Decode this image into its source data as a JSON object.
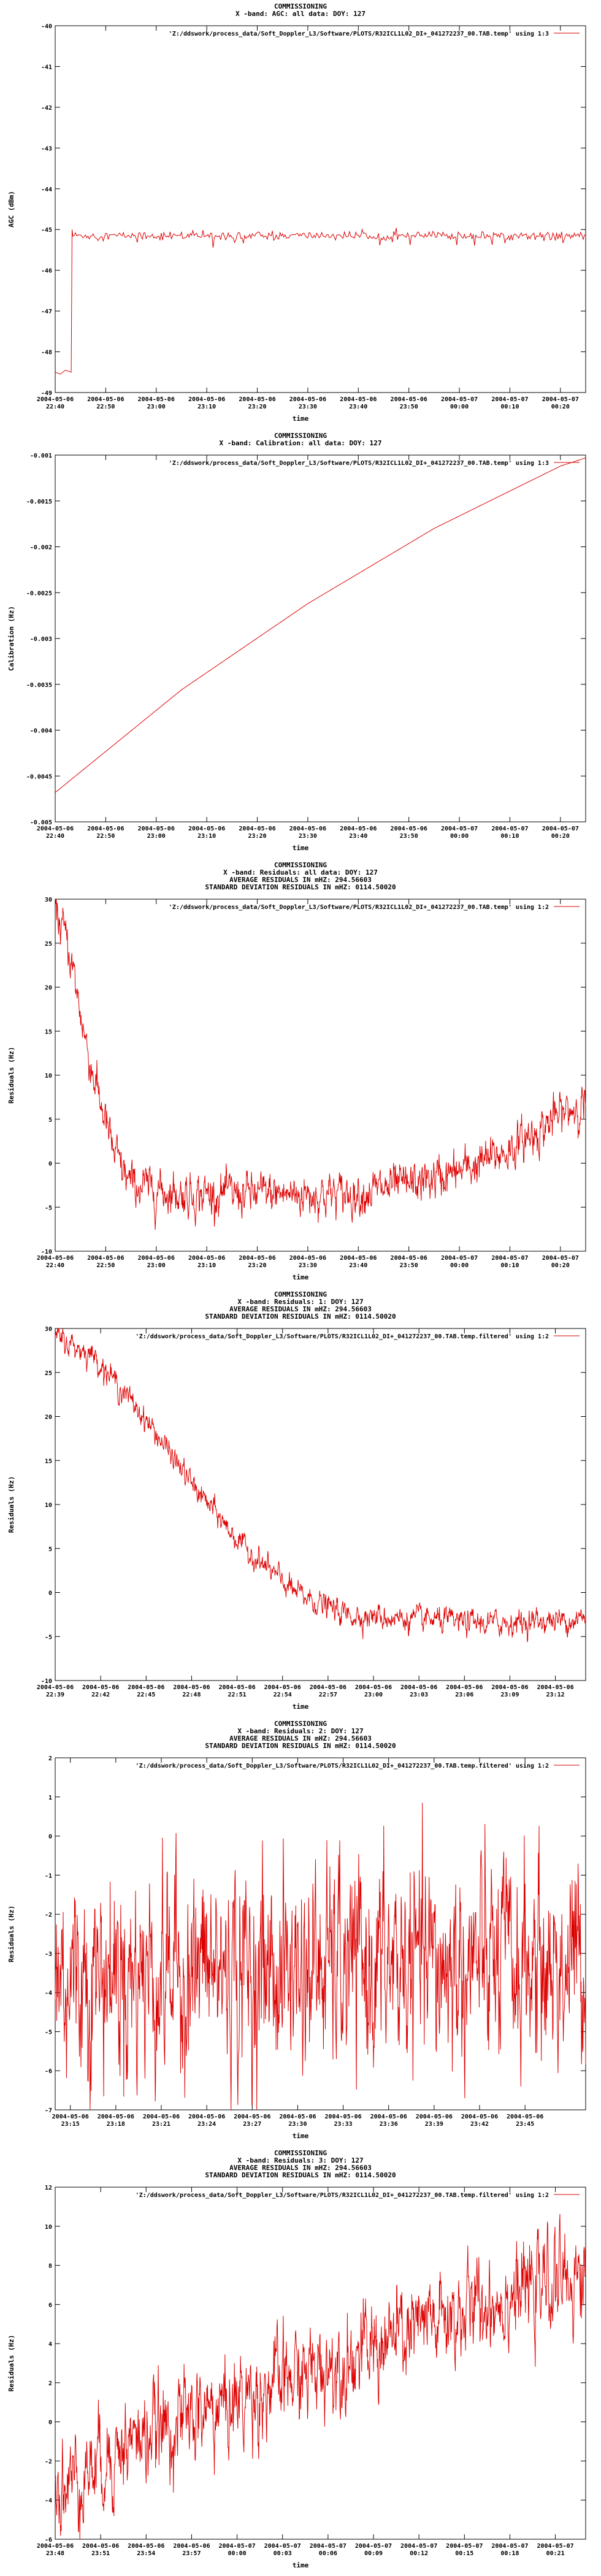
{
  "series_color": "#dd0000",
  "chart_data": [
    {
      "type": "line",
      "title": [
        "COMMISSIONING",
        "X -band: AGC: all data: DOY: 127"
      ],
      "xlabel": "time",
      "ylabel": "AGC (dBm)",
      "legend": "'Z:/ddswork/process_data/Soft_Doppler_L3/Software/PLOTS/R32ICL1L02_DI+_041272237_00.TAB.temp' using 1:3",
      "legend_position": "top-right",
      "ylim": [
        -49,
        -40
      ],
      "yticks": [
        -40,
        -41,
        -42,
        -43,
        -44,
        -45,
        -46,
        -47,
        -48,
        -49
      ],
      "xlim": [
        0,
        2700
      ],
      "xticks": [
        {
          "x": 0,
          "date": "2004-05-06",
          "time": "22:40"
        },
        {
          "x": 600,
          "date": "2004-05-06",
          "time": "22:50"
        },
        {
          "x": 1200,
          "date": "2004-05-06",
          "time": "23:00"
        },
        {
          "x": 1800,
          "date": "2004-05-06",
          "time": "23:10"
        },
        {
          "x": 2400,
          "date": "2004-05-06",
          "time": "23:20"
        },
        {
          "x": 3000,
          "date": "2004-05-06",
          "time": "23:30"
        },
        {
          "x": 3600,
          "date": "2004-05-06",
          "time": "23:40"
        },
        {
          "x": 4200,
          "date": "2004-05-06",
          "time": "23:50"
        },
        {
          "x": 4800,
          "date": "2004-05-07",
          "time": "00:00"
        },
        {
          "x": 5400,
          "date": "2004-05-07",
          "time": "00:10"
        },
        {
          "x": 6000,
          "date": "2004-05-07",
          "time": "00:20"
        }
      ],
      "xrange_s": [
        0,
        6300
      ],
      "gen": "agc"
    },
    {
      "type": "line",
      "title": [
        "COMMISSIONING",
        "X -band: Calibration: all data: DOY: 127"
      ],
      "xlabel": "time",
      "ylabel": "Calibration (Hz)",
      "legend": "'Z:/ddswork/process_data/Soft_Doppler_L3/Software/PLOTS/R32ICL1L02_DI+_041272237_00.TAB.temp' using 1:3",
      "legend_position": "top-right",
      "ylim": [
        -0.005,
        -0.001
      ],
      "yticks": [
        -0.001,
        -0.0015,
        -0.002,
        -0.0025,
        -0.003,
        -0.0035,
        -0.004,
        -0.0045,
        -0.005
      ],
      "ytick_labels": [
        "-0.001",
        "-0.0015",
        "-0.002",
        "-0.0025",
        "-0.003",
        "-0.0035",
        "-0.004",
        "-0.0045",
        "-0.005"
      ],
      "xrange_s": [
        0,
        6300
      ],
      "xticks": [
        {
          "x": 0,
          "date": "2004-05-06",
          "time": "22:40"
        },
        {
          "x": 600,
          "date": "2004-05-06",
          "time": "22:50"
        },
        {
          "x": 1200,
          "date": "2004-05-06",
          "time": "23:00"
        },
        {
          "x": 1800,
          "date": "2004-05-06",
          "time": "23:10"
        },
        {
          "x": 2400,
          "date": "2004-05-06",
          "time": "23:20"
        },
        {
          "x": 3000,
          "date": "2004-05-06",
          "time": "23:30"
        },
        {
          "x": 3600,
          "date": "2004-05-06",
          "time": "23:40"
        },
        {
          "x": 4200,
          "date": "2004-05-06",
          "time": "23:50"
        },
        {
          "x": 4800,
          "date": "2004-05-07",
          "time": "00:00"
        },
        {
          "x": 5400,
          "date": "2004-05-07",
          "time": "00:10"
        },
        {
          "x": 6000,
          "date": "2004-05-07",
          "time": "00:20"
        }
      ],
      "curve": [
        [
          0,
          -0.00468
        ],
        [
          1500,
          -0.00356
        ],
        [
          3000,
          -0.00262
        ],
        [
          4500,
          -0.0018
        ],
        [
          6000,
          -0.00112
        ],
        [
          6300,
          -0.00103
        ]
      ],
      "gen": "smooth"
    },
    {
      "type": "line",
      "title": [
        "COMMISSIONING",
        "X -band: Residuals: all data: DOY: 127",
        "AVERAGE RESIDUALS IN mHZ: 294.56603",
        "STANDARD DEVIATION RESIDUALS IN mHZ: 0114.50020"
      ],
      "xlabel": "time",
      "ylabel": "Residuals (Hz)",
      "legend": "'Z:/ddswork/process_data/Soft_Doppler_L3/Software/PLOTS/R32ICL1L02_DI+_041272237_00.TAB.temp' using 1:2",
      "legend_position": "top-right",
      "ylim": [
        -10,
        30
      ],
      "yticks": [
        30,
        25,
        20,
        15,
        10,
        5,
        0,
        -5,
        -10
      ],
      "xrange_s": [
        0,
        6300
      ],
      "xticks": [
        {
          "x": 0,
          "date": "2004-05-06",
          "time": "22:40"
        },
        {
          "x": 600,
          "date": "2004-05-06",
          "time": "22:50"
        },
        {
          "x": 1200,
          "date": "2004-05-06",
          "time": "23:00"
        },
        {
          "x": 1800,
          "date": "2004-05-06",
          "time": "23:10"
        },
        {
          "x": 2400,
          "date": "2004-05-06",
          "time": "23:20"
        },
        {
          "x": 3000,
          "date": "2004-05-06",
          "time": "23:30"
        },
        {
          "x": 3600,
          "date": "2004-05-06",
          "time": "23:40"
        },
        {
          "x": 4200,
          "date": "2004-05-06",
          "time": "23:50"
        },
        {
          "x": 4800,
          "date": "2004-05-07",
          "time": "00:00"
        },
        {
          "x": 5400,
          "date": "2004-05-07",
          "time": "00:10"
        },
        {
          "x": 6000,
          "date": "2004-05-07",
          "time": "00:20"
        }
      ],
      "trend": [
        [
          0,
          29
        ],
        [
          150,
          25
        ],
        [
          400,
          12
        ],
        [
          700,
          1
        ],
        [
          900,
          -2.5
        ],
        [
          1500,
          -3.5
        ],
        [
          2500,
          -3.5
        ],
        [
          3500,
          -3.5
        ],
        [
          4200,
          -2.5
        ],
        [
          4800,
          -1
        ],
        [
          5400,
          1.5
        ],
        [
          6000,
          5.5
        ],
        [
          6300,
          7
        ]
      ],
      "noise": 1.2,
      "gen": "noisy"
    },
    {
      "type": "line",
      "title": [
        "COMMISSIONING",
        "X -band: Residuals: 1: DOY: 127",
        "AVERAGE RESIDUALS IN mHZ: 294.56603",
        "STANDARD DEVIATION RESIDUALS IN mHZ: 0114.50020"
      ],
      "xlabel": "time",
      "ylabel": "Residuals (Hz)",
      "legend": "'Z:/ddswork/process_data/Soft_Doppler_L3/Software/PLOTS/R32ICL1L02_DI+_041272237_00.TAB.temp.filtered' using 1:2",
      "legend_position": "top-right",
      "ylim": [
        -10,
        30
      ],
      "yticks": [
        30,
        25,
        20,
        15,
        10,
        5,
        0,
        -5,
        -10
      ],
      "xrange_s": [
        0,
        2100
      ],
      "xticks": [
        {
          "x": 0,
          "date": "2004-05-06",
          "time": "22:39"
        },
        {
          "x": 180,
          "date": "2004-05-06",
          "time": "22:42"
        },
        {
          "x": 360,
          "date": "2004-05-06",
          "time": "22:45"
        },
        {
          "x": 540,
          "date": "2004-05-06",
          "time": "22:48"
        },
        {
          "x": 720,
          "date": "2004-05-06",
          "time": "22:51"
        },
        {
          "x": 900,
          "date": "2004-05-06",
          "time": "22:54"
        },
        {
          "x": 1080,
          "date": "2004-05-06",
          "time": "22:57"
        },
        {
          "x": 1260,
          "date": "2004-05-06",
          "time": "23:00"
        },
        {
          "x": 1440,
          "date": "2004-05-06",
          "time": "23:03"
        },
        {
          "x": 1620,
          "date": "2004-05-06",
          "time": "23:06"
        },
        {
          "x": 1800,
          "date": "2004-05-06",
          "time": "23:09"
        },
        {
          "x": 1980,
          "date": "2004-05-06",
          "time": "23:12"
        }
      ],
      "trend": [
        [
          0,
          29
        ],
        [
          150,
          27
        ],
        [
          350,
          20
        ],
        [
          550,
          12
        ],
        [
          750,
          5
        ],
        [
          950,
          0
        ],
        [
          1150,
          -2.5
        ],
        [
          1400,
          -3
        ],
        [
          1700,
          -3.5
        ],
        [
          2100,
          -3
        ]
      ],
      "noise": 0.7,
      "gen": "noisy"
    },
    {
      "type": "line",
      "title": [
        "COMMISSIONING",
        "X -band: Residuals: 2: DOY: 127",
        "AVERAGE RESIDUALS IN mHZ: 294.56603",
        "STANDARD DEVIATION RESIDUALS IN mHZ: 0114.50020"
      ],
      "xlabel": "time",
      "ylabel": "Residuals (Hz)",
      "legend": "'Z:/ddswork/process_data/Soft_Doppler_L3/Software/PLOTS/R32ICL1L02_DI+_041272237_00.TAB.temp.filtered' using 1:2",
      "legend_position": "top-right",
      "ylim": [
        -7,
        2
      ],
      "yticks": [
        2,
        1,
        0,
        -1,
        -2,
        -3,
        -4,
        -5,
        -6,
        -7
      ],
      "xrange_s": [
        0,
        2100
      ],
      "xticks": [
        {
          "x": 60,
          "date": "2004-05-06",
          "time": "23:15"
        },
        {
          "x": 240,
          "date": "2004-05-06",
          "time": "23:18"
        },
        {
          "x": 420,
          "date": "2004-05-06",
          "time": "23:21"
        },
        {
          "x": 600,
          "date": "2004-05-06",
          "time": "23:24"
        },
        {
          "x": 780,
          "date": "2004-05-06",
          "time": "23:27"
        },
        {
          "x": 960,
          "date": "2004-05-06",
          "time": "23:30"
        },
        {
          "x": 1140,
          "date": "2004-05-06",
          "time": "23:33"
        },
        {
          "x": 1320,
          "date": "2004-05-06",
          "time": "23:36"
        },
        {
          "x": 1500,
          "date": "2004-05-06",
          "time": "23:39"
        },
        {
          "x": 1680,
          "date": "2004-05-06",
          "time": "23:42"
        },
        {
          "x": 1860,
          "date": "2004-05-06",
          "time": "23:45"
        }
      ],
      "trend": [
        [
          0,
          -3.5
        ],
        [
          2100,
          -3.3
        ]
      ],
      "noise": 1.3,
      "gen": "noisy"
    },
    {
      "type": "line",
      "title": [
        "COMMISSIONING",
        "X -band: Residuals: 3: DOY: 127",
        "AVERAGE RESIDUALS IN mHZ: 294.56603",
        "STANDARD DEVIATION RESIDUALS IN mHZ: 0114.50020"
      ],
      "xlabel": "time",
      "ylabel": "Residuals (Hz)",
      "legend": "'Z:/ddswork/process_data/Soft_Doppler_L3/Software/PLOTS/R32ICL1L02_DI+_041272237_00.TAB.temp.filtered' using 1:2",
      "legend_position": "top-right",
      "ylim": [
        -6,
        12
      ],
      "yticks": [
        12,
        10,
        8,
        6,
        4,
        2,
        0,
        -2,
        -4,
        -6
      ],
      "xrange_s": [
        0,
        2100
      ],
      "xticks": [
        {
          "x": 0,
          "date": "2004-05-06",
          "time": "23:48"
        },
        {
          "x": 180,
          "date": "2004-05-06",
          "time": "23:51"
        },
        {
          "x": 360,
          "date": "2004-05-06",
          "time": "23:54"
        },
        {
          "x": 540,
          "date": "2004-05-06",
          "time": "23:57"
        },
        {
          "x": 720,
          "date": "2004-05-07",
          "time": "00:00"
        },
        {
          "x": 900,
          "date": "2004-05-07",
          "time": "00:03"
        },
        {
          "x": 1080,
          "date": "2004-05-07",
          "time": "00:06"
        },
        {
          "x": 1260,
          "date": "2004-05-07",
          "time": "00:09"
        },
        {
          "x": 1440,
          "date": "2004-05-07",
          "time": "00:12"
        },
        {
          "x": 1620,
          "date": "2004-05-07",
          "time": "00:15"
        },
        {
          "x": 1800,
          "date": "2004-05-07",
          "time": "00:18"
        },
        {
          "x": 1980,
          "date": "2004-05-07",
          "time": "00:21"
        }
      ],
      "trend": [
        [
          0,
          -3.5
        ],
        [
          300,
          -1
        ],
        [
          700,
          1
        ],
        [
          1100,
          3
        ],
        [
          1500,
          5
        ],
        [
          1800,
          6.5
        ],
        [
          2100,
          7.5
        ]
      ],
      "noise": 1.2,
      "gen": "noisy"
    }
  ]
}
